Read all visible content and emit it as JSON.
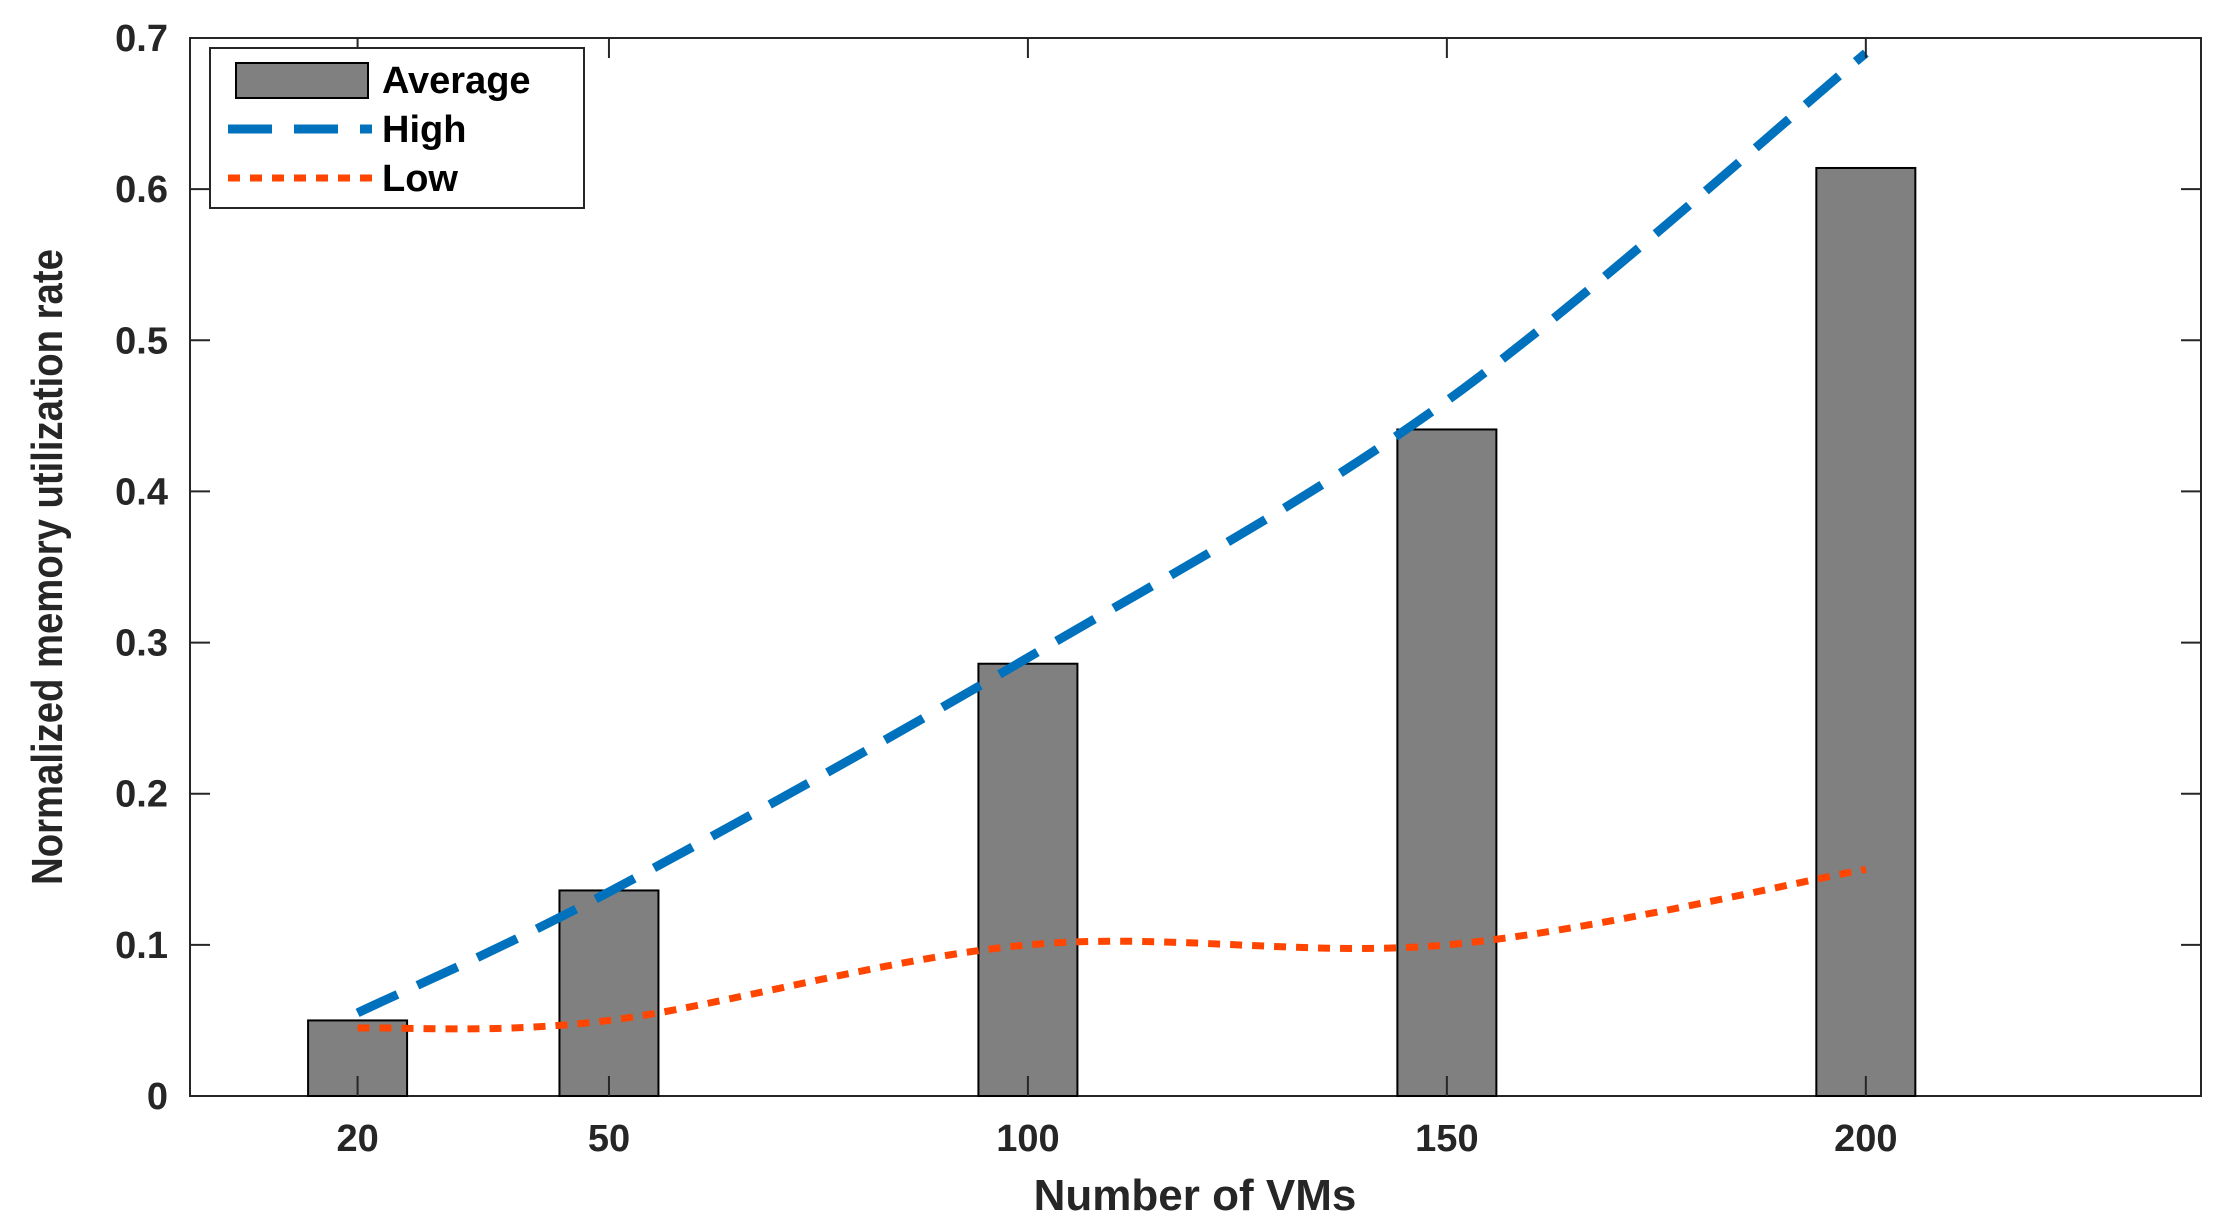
{
  "chart_data": {
    "type": "bar",
    "title": "",
    "xlabel": "Number of VMs",
    "ylabel": "Normalized memory utilization rate",
    "x": [
      20,
      50,
      100,
      150,
      200
    ],
    "x_tick_labels": [
      "20",
      "50",
      "100",
      "150",
      "200"
    ],
    "xlim": [
      0,
      240
    ],
    "ylim": [
      0,
      0.7
    ],
    "y_ticks": [
      0,
      0.1,
      0.2,
      0.3,
      0.4,
      0.5,
      0.6,
      0.7
    ],
    "y_tick_labels": [
      "0",
      "0.1",
      "0.2",
      "0.3",
      "0.4",
      "0.5",
      "0.6",
      "0.7"
    ],
    "grid": false,
    "legend_position": "top-left",
    "series": [
      {
        "name": "Average",
        "kind": "bar",
        "color": "#808080",
        "values": [
          0.05,
          0.136,
          0.286,
          0.441,
          0.614
        ]
      },
      {
        "name": "High",
        "kind": "line",
        "style": "dashed",
        "color": "#0072BD",
        "values": [
          0.055,
          0.135,
          0.29,
          0.46,
          0.69
        ]
      },
      {
        "name": "Low",
        "kind": "line",
        "style": "dotted",
        "color": "#FF4500",
        "values": [
          0.045,
          0.05,
          0.1,
          0.1,
          0.15
        ]
      }
    ]
  }
}
